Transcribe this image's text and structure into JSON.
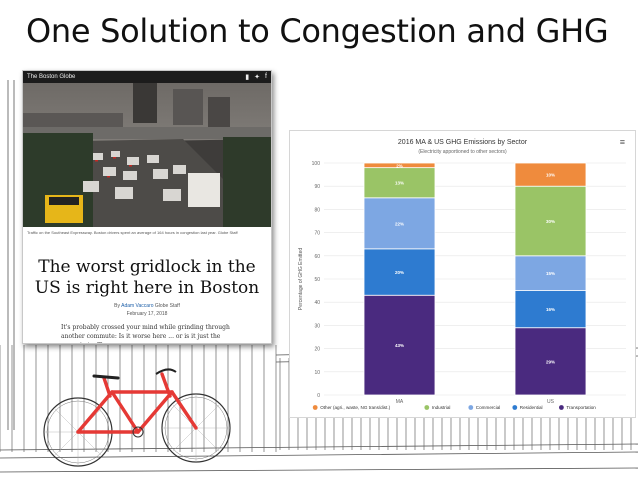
{
  "slide": {
    "title": "One Solution to Congestion and GHG"
  },
  "article": {
    "masthead": "The Boston Globe",
    "caption": "Traffic on the Southeast Expressway. Boston drivers spent an average of 164 hours in congestion last year.",
    "photo_credit": "Globe Staff",
    "headline": "The worst gridlock in the US is right here in Boston",
    "byline_prefix": "By",
    "byline_author": "Adam Vaccaro",
    "byline_suffix": "Globe Staff",
    "date": "February 17, 2018",
    "body": "It's probably crossed your mind while grinding through another commute: Is it worse here ... or is it just the sense in traffic"
  },
  "chart_data": {
    "type": "bar",
    "stacked": true,
    "title": "2016 MA & US GHG Emissions by Sector",
    "subtitle": "(Electricity apportioned to other sectors)",
    "ylabel": "Percentage of GHG Emitted",
    "xlabel": "",
    "ylim": [
      0,
      100
    ],
    "yticks": [
      0,
      10,
      20,
      30,
      40,
      50,
      60,
      70,
      80,
      90,
      100
    ],
    "categories": [
      "MA",
      "US"
    ],
    "grid": true,
    "legend_position": "bottom",
    "series": [
      {
        "name": "Transportation",
        "color": "#4a2a7f",
        "values": [
          43,
          29
        ],
        "labels": [
          "43%",
          "29%"
        ]
      },
      {
        "name": "Residential",
        "color": "#2e7bd0",
        "values": [
          20,
          16
        ],
        "labels": [
          "20%",
          "16%"
        ]
      },
      {
        "name": "Commercial",
        "color": "#7da7e3",
        "values": [
          22,
          15
        ],
        "labels": [
          "22%",
          "15%"
        ]
      },
      {
        "name": "Industrial",
        "color": "#9ac466",
        "values": [
          13,
          30
        ],
        "labels": [
          "13%",
          "30%"
        ]
      },
      {
        "name": "Other (agri., waste, NG trans/dist.)",
        "color": "#ef8b3d",
        "values": [
          2,
          10
        ],
        "labels": [
          "2%",
          "10%"
        ]
      }
    ],
    "legend_order": [
      "Other (agri., waste, NG trans/dist.)",
      "Industrial",
      "Commercial",
      "Residential",
      "Transportation"
    ]
  },
  "icons": {
    "chart_menu": "hamburger-menu-icon",
    "share_1": "flipboard-icon",
    "share_2": "twitter-icon",
    "share_3": "facebook-icon"
  }
}
